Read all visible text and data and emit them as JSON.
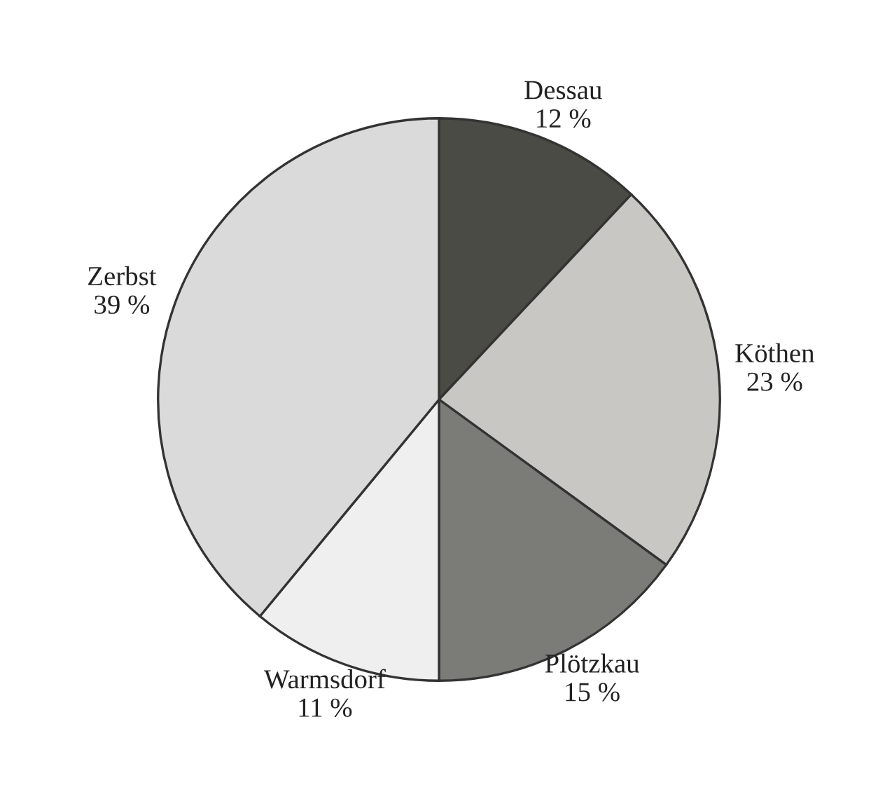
{
  "chart_data": {
    "type": "pie",
    "categories": [
      "Dessau",
      "Köthen",
      "Plötzkau",
      "Warmsdorf",
      "Zerbst"
    ],
    "values": [
      12,
      23,
      15,
      11,
      39
    ],
    "value_labels": [
      "12 %",
      "23 %",
      "15 %",
      "11 %",
      "39 %"
    ],
    "colors": [
      "#4b4b46",
      "#c9c7c3",
      "#7b7b77",
      "#efefef",
      "#dadada"
    ]
  }
}
